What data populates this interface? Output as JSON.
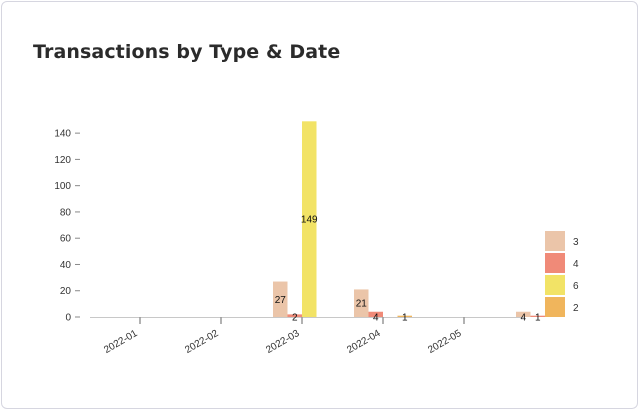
{
  "card": {
    "title": "Transactions by Type & Date"
  },
  "chart_data": {
    "type": "bar",
    "title": "Transactions by Type & Date",
    "categories": [
      "2022-01",
      "2022-02",
      "2022-03",
      "2022-04",
      "2022-05"
    ],
    "yticks": [
      0,
      20,
      40,
      60,
      80,
      100,
      120,
      140
    ],
    "ylim": [
      0,
      150
    ],
    "grid": false,
    "legend_position": "right",
    "series": [
      {
        "name": "3",
        "color": "#ebc5a9",
        "values": [
          0,
          27,
          21,
          0,
          4
        ],
        "labels": [
          "",
          "27",
          "21",
          "",
          "4"
        ]
      },
      {
        "name": "4",
        "color": "#f08a78",
        "values": [
          0,
          2,
          4,
          0,
          1
        ],
        "labels": [
          "",
          "2",
          "4",
          "",
          "1"
        ]
      },
      {
        "name": "6",
        "color": "#f2e366",
        "values": [
          0,
          149,
          0,
          0,
          0
        ],
        "labels": [
          "",
          "149",
          "",
          "",
          ""
        ]
      },
      {
        "name": "2",
        "color": "#f0b55c",
        "values": [
          0,
          0,
          1,
          0,
          0
        ],
        "labels": [
          "",
          "",
          "1",
          "",
          ""
        ]
      }
    ]
  }
}
